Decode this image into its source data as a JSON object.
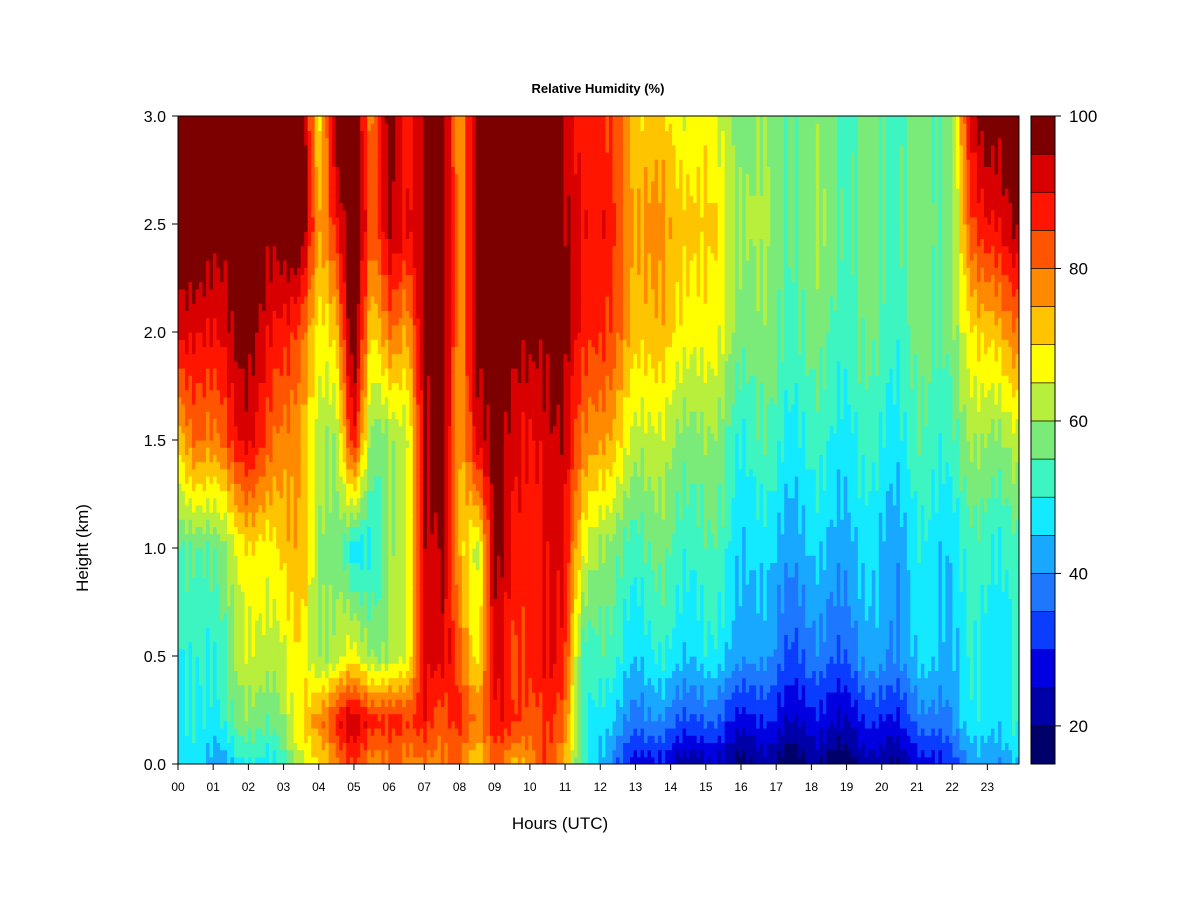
{
  "chart_data": {
    "type": "heatmap",
    "title": "Relative Humidity (%)",
    "xlabel": "Hours (UTC)",
    "ylabel": "Height (km)",
    "x_ticks": [
      "00",
      "01",
      "02",
      "03",
      "04",
      "05",
      "06",
      "07",
      "08",
      "09",
      "10",
      "11",
      "12",
      "13",
      "14",
      "15",
      "16",
      "17",
      "18",
      "19",
      "20",
      "21",
      "22",
      "23"
    ],
    "y_ticks": [
      "0.0",
      "0.5",
      "1.0",
      "1.5",
      "2.0",
      "2.5",
      "3.0"
    ],
    "xlim": [
      0,
      23.9
    ],
    "ylim": [
      0,
      3.0
    ],
    "colorbar": {
      "ticks": [
        "20",
        "40",
        "60",
        "80",
        "100"
      ],
      "range": [
        15,
        100
      ],
      "levels": [
        15,
        20,
        25,
        30,
        35,
        40,
        45,
        50,
        55,
        60,
        65,
        70,
        75,
        80,
        85,
        90,
        95,
        100
      ],
      "colors": [
        "#00006a",
        "#0000a8",
        "#0000e0",
        "#0a3dff",
        "#1e78ff",
        "#19a8ff",
        "#14eaff",
        "#3cf5c0",
        "#7aeb79",
        "#b7ef3c",
        "#ffff00",
        "#ffc400",
        "#ff8a00",
        "#ff5500",
        "#ff1500",
        "#d80000",
        "#7d0000"
      ]
    },
    "x": [
      0,
      0.5,
      1,
      1.5,
      2,
      2.5,
      3,
      3.5,
      4,
      4.5,
      5,
      5.5,
      6,
      6.5,
      7,
      7.5,
      8,
      8.5,
      9,
      9.5,
      10,
      10.5,
      11,
      11.5,
      12,
      12.5,
      13,
      13.5,
      14,
      14.5,
      15,
      15.5,
      16,
      16.5,
      17,
      17.5,
      18,
      18.5,
      19,
      19.5,
      20,
      20.5,
      21,
      21.5,
      22,
      22.5,
      23,
      23.5
    ],
    "y": [
      0.0,
      0.2,
      0.5,
      1.0,
      1.5,
      2.0,
      2.5,
      3.0
    ],
    "z_by_height": [
      [
        45,
        45,
        44,
        45,
        48,
        50,
        52,
        62,
        72,
        78,
        82,
        80,
        80,
        75,
        82,
        78,
        78,
        72,
        80,
        72,
        80,
        84,
        72,
        55,
        42,
        34,
        30,
        27,
        24,
        24,
        22,
        22,
        20,
        19,
        19,
        18,
        18,
        18,
        19,
        20,
        21,
        22,
        24,
        28,
        34,
        38,
        42,
        44
      ],
      [
        48,
        48,
        50,
        55,
        56,
        58,
        60,
        67,
        80,
        88,
        92,
        90,
        87,
        82,
        92,
        80,
        85,
        82,
        88,
        85,
        85,
        85,
        78,
        55,
        46,
        42,
        40,
        38,
        36,
        36,
        34,
        32,
        30,
        28,
        28,
        27,
        26,
        26,
        27,
        28,
        30,
        32,
        34,
        38,
        42,
        46,
        48,
        50
      ],
      [
        50,
        48,
        52,
        58,
        62,
        65,
        64,
        67,
        62,
        62,
        65,
        62,
        60,
        62,
        95,
        92,
        80,
        70,
        92,
        82,
        90,
        90,
        85,
        55,
        52,
        50,
        48,
        48,
        48,
        48,
        47,
        46,
        44,
        40,
        38,
        36,
        36,
        36,
        38,
        40,
        42,
        42,
        44,
        46,
        46,
        48,
        48,
        50
      ],
      [
        55,
        52,
        58,
        62,
        67,
        70,
        72,
        72,
        62,
        58,
        45,
        52,
        58,
        62,
        96,
        96,
        72,
        65,
        96,
        88,
        90,
        90,
        88,
        70,
        58,
        55,
        55,
        55,
        54,
        54,
        52,
        52,
        48,
        45,
        44,
        44,
        44,
        44,
        45,
        45,
        44,
        44,
        46,
        48,
        48,
        50,
        52,
        52
      ],
      [
        72,
        78,
        80,
        86,
        90,
        86,
        78,
        72,
        65,
        60,
        88,
        60,
        58,
        60,
        97,
        97,
        72,
        95,
        97,
        90,
        92,
        92,
        92,
        82,
        75,
        70,
        65,
        62,
        60,
        60,
        58,
        56,
        52,
        52,
        52,
        50,
        50,
        50,
        50,
        50,
        50,
        50,
        52,
        52,
        55,
        58,
        60,
        62
      ],
      [
        92,
        88,
        92,
        95,
        96,
        94,
        88,
        80,
        70,
        72,
        100,
        72,
        80,
        72,
        100,
        100,
        74,
        100,
        100,
        96,
        100,
        96,
        96,
        90,
        85,
        80,
        75,
        72,
        70,
        70,
        66,
        64,
        60,
        56,
        56,
        56,
        55,
        55,
        55,
        54,
        54,
        54,
        55,
        55,
        60,
        66,
        72,
        78
      ],
      [
        100,
        100,
        100,
        100,
        100,
        100,
        100,
        100,
        78,
        88,
        100,
        85,
        95,
        88,
        100,
        100,
        75,
        100,
        100,
        100,
        100,
        100,
        95,
        92,
        88,
        82,
        78,
        76,
        74,
        75,
        70,
        66,
        62,
        60,
        58,
        58,
        58,
        58,
        56,
        56,
        56,
        56,
        56,
        56,
        60,
        80,
        90,
        95
      ],
      [
        100,
        100,
        100,
        100,
        100,
        100,
        100,
        100,
        70,
        100,
        100,
        80,
        100,
        82,
        100,
        100,
        72,
        100,
        100,
        100,
        100,
        100,
        92,
        90,
        85,
        80,
        74,
        70,
        68,
        68,
        66,
        62,
        60,
        58,
        58,
        58,
        56,
        56,
        55,
        55,
        55,
        55,
        55,
        55,
        60,
        88,
        100,
        100
      ]
    ]
  }
}
